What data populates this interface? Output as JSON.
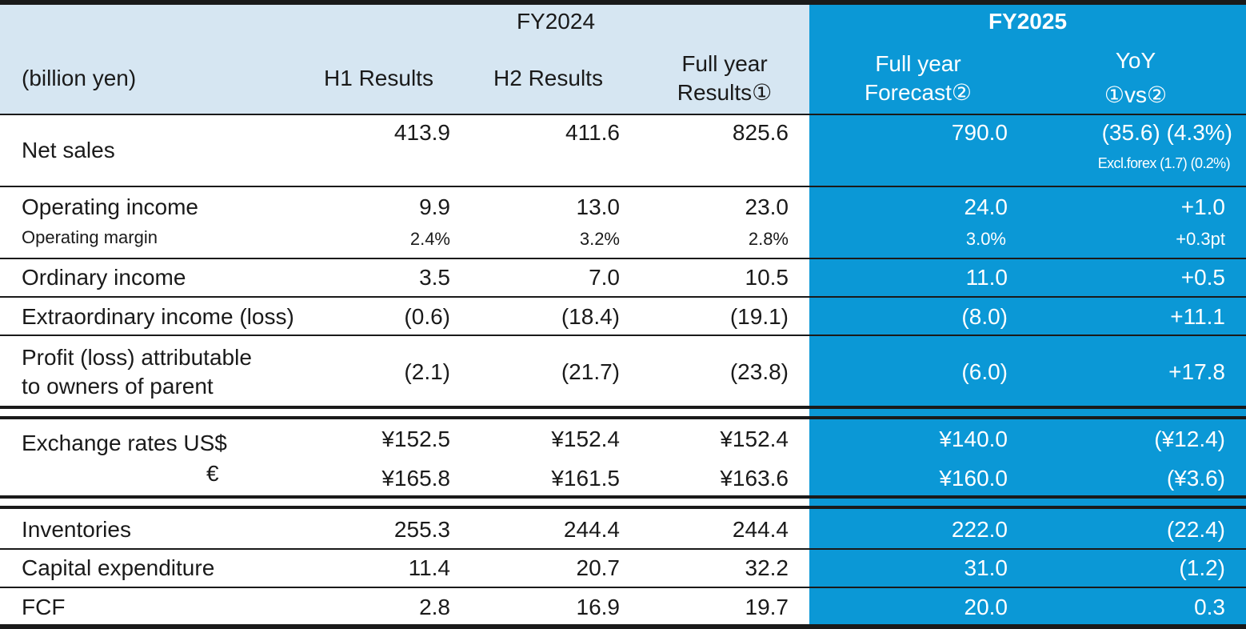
{
  "header": {
    "group_fy2024": "FY2024",
    "group_fy2025": "FY2025",
    "unit_label": "(billion yen)",
    "col_h1": "H1 Results",
    "col_h2": "H2 Results",
    "col_full_line1": "Full year",
    "col_full_line2": "Results①",
    "col_forecast_line1": "Full year",
    "col_forecast_line2": "Forecast②",
    "col_yoy_line1": "YoY",
    "col_yoy_line2": "①vs②"
  },
  "rows": {
    "net_sales": {
      "label": "Net sales",
      "h1": "413.9",
      "h2": "411.6",
      "full": "825.6",
      "forecast": "790.0",
      "yoy": "(35.6) (4.3%)",
      "yoy_note": "Excl.forex (1.7) (0.2%)"
    },
    "operating_income": {
      "label": "Operating income",
      "h1": "9.9",
      "h2": "13.0",
      "full": "23.0",
      "forecast": "24.0",
      "yoy": "+1.0"
    },
    "operating_margin": {
      "label": "Operating margin",
      "h1": "2.4%",
      "h2": "3.2%",
      "full": "2.8%",
      "forecast": "3.0%",
      "yoy": "+0.3pt"
    },
    "ordinary_income": {
      "label": "Ordinary income",
      "h1": "3.5",
      "h2": "7.0",
      "full": "10.5",
      "forecast": "11.0",
      "yoy": "+0.5"
    },
    "extraordinary": {
      "label": "Extraordinary income (loss)",
      "h1": "(0.6)",
      "h2": "(18.4)",
      "full": "(19.1)",
      "forecast": "(8.0)",
      "yoy": "+11.1"
    },
    "profit": {
      "label_line1": "Profit (loss) attributable",
      "label_line2": "to owners of parent",
      "h1": "(2.1)",
      "h2": "(21.7)",
      "full": "(23.8)",
      "forecast": "(6.0)",
      "yoy": "+17.8"
    },
    "fx_usd": {
      "label": "Exchange rates US$",
      "h1": "¥152.5",
      "h2": "¥152.4",
      "full": "¥152.4",
      "forecast": "¥140.0",
      "yoy": "(¥12.4)"
    },
    "fx_eur": {
      "label": "€",
      "h1": "¥165.8",
      "h2": "¥161.5",
      "full": "¥163.6",
      "forecast": "¥160.0",
      "yoy": "(¥3.6)"
    },
    "inventories": {
      "label": "Inventories",
      "h1": "255.3",
      "h2": "244.4",
      "full": "244.4",
      "forecast": "222.0",
      "yoy": "(22.4)"
    },
    "capex": {
      "label": "Capital expenditure",
      "h1": "11.4",
      "h2": "20.7",
      "full": "32.2",
      "forecast": "31.0",
      "yoy": "(1.2)"
    },
    "fcf": {
      "label": "FCF",
      "h1": "2.8",
      "h2": "16.9",
      "full": "19.7",
      "forecast": "20.0",
      "yoy": "0.3"
    }
  }
}
